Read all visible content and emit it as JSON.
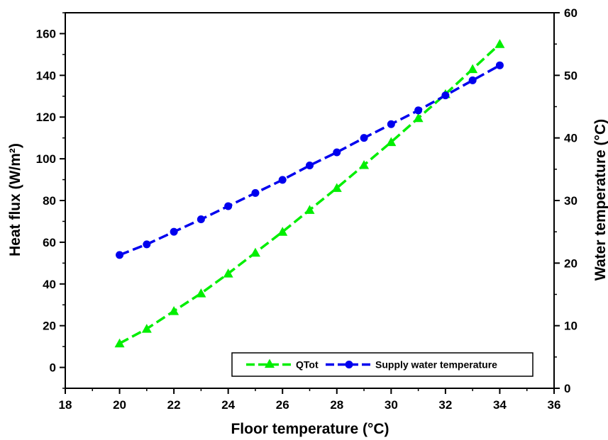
{
  "chart_data": {
    "type": "line",
    "xlabel": "Floor temperature (°C)",
    "ylabel": "Heat flux (W/m²)",
    "y2label": "Water temperature (°C)",
    "xlim": [
      18,
      36
    ],
    "ylim": [
      -10,
      170
    ],
    "y2lim": [
      0,
      60
    ],
    "x_ticks": [
      18,
      20,
      22,
      24,
      26,
      28,
      30,
      32,
      34,
      36
    ],
    "y_ticks": [
      0,
      20,
      40,
      60,
      80,
      100,
      120,
      140,
      160
    ],
    "y2_ticks": [
      0,
      10,
      20,
      30,
      40,
      50,
      60
    ],
    "grid": false,
    "legend_position": "bottom-right",
    "series": [
      {
        "name": "QTot",
        "axis": "left",
        "color": "#00ee00",
        "marker": "triangle",
        "line_style": "dashed",
        "x": [
          20,
          21,
          22,
          23,
          24,
          25,
          26,
          27,
          28,
          29,
          30,
          31,
          32,
          33,
          34
        ],
        "values": [
          11.5,
          18.5,
          27,
          35.5,
          45,
          55,
          65,
          75.5,
          86,
          97,
          108,
          119.5,
          131,
          143,
          155
        ]
      },
      {
        "name": "Supply water temperature",
        "axis": "right",
        "color": "#0000ee",
        "marker": "circle",
        "line_style": "dashed",
        "x": [
          20,
          21,
          22,
          23,
          24,
          25,
          26,
          27,
          28,
          29,
          30,
          31,
          32,
          33,
          34
        ],
        "values": [
          21.3,
          23.0,
          25.0,
          27.0,
          29.1,
          31.2,
          33.3,
          35.6,
          37.7,
          40.0,
          42.2,
          44.4,
          46.8,
          49.2,
          51.6
        ]
      }
    ]
  }
}
